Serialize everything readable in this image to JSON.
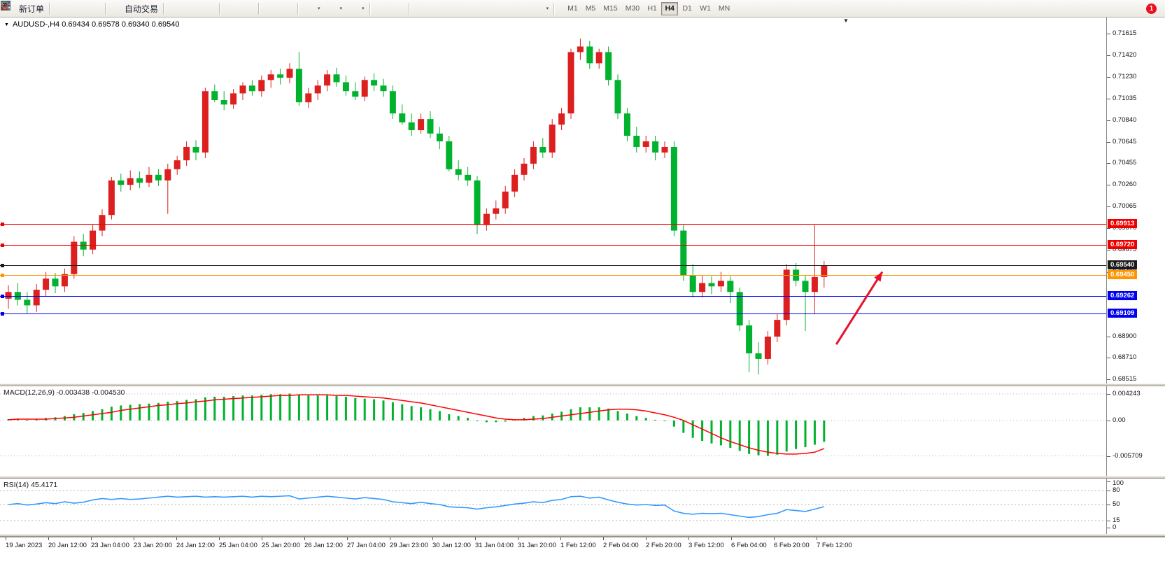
{
  "toolbar": {
    "buttons": [
      {
        "name": "new-order",
        "label": "新订单",
        "icon": "new-order"
      },
      {
        "separator": true
      },
      {
        "name": "market-watch",
        "icon": "market-watch"
      },
      {
        "name": "data-window",
        "icon": "data-window"
      },
      {
        "name": "navigator",
        "icon": "navigator"
      },
      {
        "separator": true
      },
      {
        "name": "auto-trading",
        "label": "自动交易",
        "icon": "auto-trading"
      },
      {
        "separator": true
      },
      {
        "name": "chart-bars",
        "icon": "chart-bars"
      },
      {
        "name": "chart-candles",
        "icon": "chart-candles"
      },
      {
        "name": "chart-line",
        "icon": "chart-line"
      },
      {
        "separator": true
      },
      {
        "name": "zoom-in",
        "icon": "zoom-in"
      },
      {
        "name": "zoom-out",
        "icon": "zoom-out"
      },
      {
        "separator": true
      },
      {
        "name": "tile-windows",
        "icon": "tile-windows"
      },
      {
        "name": "cascade-windows",
        "icon": "cascade-windows"
      },
      {
        "separator": true
      },
      {
        "name": "add-indicator",
        "icon": "add-indicator",
        "dropdown": true
      },
      {
        "name": "periods",
        "icon": "period-clock",
        "dropdown": true
      },
      {
        "name": "templates",
        "icon": "chart-template",
        "dropdown": true
      },
      {
        "separator": true
      },
      {
        "name": "cursor",
        "icon": "cursor-arrow"
      },
      {
        "name": "crosshair",
        "icon": "crosshair"
      },
      {
        "separator": true
      },
      {
        "name": "vertical-line",
        "icon": "vline-tool"
      },
      {
        "name": "horizontal-line",
        "icon": "hline-tool"
      },
      {
        "name": "trendline",
        "icon": "trendline-tool"
      },
      {
        "name": "equidistant-channel",
        "icon": "channel-tool"
      },
      {
        "name": "fibonacci",
        "icon": "fibo-tool"
      },
      {
        "name": "shapes",
        "icon": "shapes-tool"
      },
      {
        "name": "text-label",
        "icon": "text-tool"
      },
      {
        "name": "arrow-objects",
        "icon": "arrows-tool",
        "dropdown": true
      },
      {
        "separator": true
      }
    ],
    "timeframes": [
      {
        "label": "M1"
      },
      {
        "label": "M5"
      },
      {
        "label": "M15"
      },
      {
        "label": "M30"
      },
      {
        "label": "H1"
      },
      {
        "label": "H4",
        "active": true
      },
      {
        "label": "D1"
      },
      {
        "label": "W1"
      },
      {
        "label": "MN"
      }
    ],
    "notification_count": "1"
  },
  "chart": {
    "title_line": "AUDUSD-,H4 0.69434 0.69578 0.69340 0.69540"
  },
  "chart_data": {
    "type": "candlestick",
    "symbol": "AUDUSD-",
    "timeframe": "H4",
    "current_ohlc": {
      "open": 0.69434,
      "high": 0.69578,
      "low": 0.6934,
      "close": 0.6954
    },
    "colors": {
      "bull": "#dc1f1f",
      "bear": "#00b22d",
      "macd_bar": "#00b22d",
      "macd_signal": "#ff0000",
      "rsi_line": "#3399ff",
      "arrow": "#e8112d"
    },
    "price_axis": {
      "min": 0.6848,
      "max": 0.7176,
      "ticks": [
        "0.71615",
        "0.71420",
        "0.71230",
        "0.71035",
        "0.70840",
        "0.70645",
        "0.70455",
        "0.70260",
        "0.70065",
        "0.69870",
        "0.69675",
        "0.69480",
        "0.68900",
        "0.68710",
        "0.68515"
      ]
    },
    "hlines": [
      {
        "price": 0.69913,
        "label": "0.69913",
        "color": "#ee0000"
      },
      {
        "price": 0.6972,
        "label": "0.69720",
        "color": "#ee0000"
      },
      {
        "price": 0.6954,
        "label": "0.69540",
        "color": "#1a1a1a"
      },
      {
        "price": 0.6945,
        "label": "0.69450",
        "color": "#ff9500"
      },
      {
        "price": 0.69262,
        "label": "0.69262",
        "color": "#0000ee"
      },
      {
        "price": 0.69109,
        "label": "0.69109",
        "color": "#0000ee"
      }
    ],
    "arrow": {
      "from": {
        "index": 88.3,
        "price": 0.6883
      },
      "to": {
        "index": 93.2,
        "price": 0.6948
      },
      "width": 3
    },
    "time_labels": [
      "19 Jan 2023",
      "20 Jan 12:00",
      "23 Jan 04:00",
      "23 Jan 20:00",
      "24 Jan 12:00",
      "25 Jan 04:00",
      "25 Jan 20:00",
      "26 Jan 12:00",
      "27 Jan 04:00",
      "29 Jan 23:00",
      "30 Jan 12:00",
      "31 Jan 04:00",
      "31 Jan 20:00",
      "1 Feb 12:00",
      "2 Feb 04:00",
      "2 Feb 20:00",
      "3 Feb 12:00",
      "6 Feb 04:00",
      "6 Feb 20:00",
      "7 Feb 12:00"
    ],
    "candles_scale": 1e-05,
    "candles": [
      [
        69240,
        69360,
        69150,
        69300
      ],
      [
        69300,
        69380,
        69180,
        69230
      ],
      [
        69230,
        69300,
        69110,
        69180
      ],
      [
        69180,
        69370,
        69120,
        69320
      ],
      [
        69320,
        69480,
        69260,
        69420
      ],
      [
        69420,
        69470,
        69290,
        69350
      ],
      [
        69350,
        69510,
        69300,
        69460
      ],
      [
        69460,
        69800,
        69420,
        69750
      ],
      [
        69750,
        69820,
        69620,
        69680
      ],
      [
        69680,
        69900,
        69640,
        69850
      ],
      [
        69850,
        70040,
        69800,
        69990
      ],
      [
        69990,
        70330,
        69950,
        70300
      ],
      [
        70300,
        70360,
        70200,
        70260
      ],
      [
        70260,
        70390,
        70210,
        70320
      ],
      [
        70320,
        70380,
        70230,
        70280
      ],
      [
        70280,
        70420,
        70240,
        70350
      ],
      [
        70350,
        70400,
        70250,
        70300
      ],
      [
        70300,
        70450,
        70000,
        70400
      ],
      [
        70400,
        70520,
        70350,
        70480
      ],
      [
        70480,
        70650,
        70430,
        70600
      ],
      [
        70600,
        70660,
        70480,
        70550
      ],
      [
        70550,
        71130,
        70500,
        71100
      ],
      [
        71100,
        71160,
        71000,
        71020
      ],
      [
        71020,
        71100,
        70930,
        70980
      ],
      [
        70980,
        71120,
        70940,
        71080
      ],
      [
        71080,
        71180,
        71020,
        71150
      ],
      [
        71150,
        71200,
        71060,
        71100
      ],
      [
        71100,
        71240,
        71050,
        71200
      ],
      [
        71200,
        71290,
        71130,
        71250
      ],
      [
        71250,
        71300,
        71160,
        71220
      ],
      [
        71220,
        71350,
        71170,
        71300
      ],
      [
        71300,
        71450,
        70970,
        71000
      ],
      [
        71000,
        71130,
        70950,
        71080
      ],
      [
        71080,
        71200,
        71020,
        71150
      ],
      [
        71150,
        71290,
        71100,
        71250
      ],
      [
        71250,
        71310,
        71140,
        71180
      ],
      [
        71180,
        71240,
        71060,
        71100
      ],
      [
        71100,
        71180,
        71020,
        71050
      ],
      [
        71050,
        71230,
        71010,
        71200
      ],
      [
        71200,
        71260,
        71100,
        71150
      ],
      [
        71150,
        71210,
        71050,
        71100
      ],
      [
        71100,
        71150,
        70850,
        70900
      ],
      [
        70900,
        70980,
        70800,
        70820
      ],
      [
        70820,
        70900,
        70700,
        70750
      ],
      [
        70750,
        70900,
        70720,
        70850
      ],
      [
        70850,
        70920,
        70680,
        70720
      ],
      [
        70720,
        70780,
        70580,
        70650
      ],
      [
        70650,
        70700,
        70380,
        70400
      ],
      [
        70400,
        70480,
        70300,
        70350
      ],
      [
        70350,
        70420,
        70250,
        70300
      ],
      [
        70300,
        70340,
        69820,
        69900
      ],
      [
        69900,
        70050,
        69850,
        70000
      ],
      [
        70000,
        70120,
        69950,
        70050
      ],
      [
        70050,
        70250,
        70000,
        70200
      ],
      [
        70200,
        70400,
        70150,
        70350
      ],
      [
        70350,
        70500,
        70300,
        70450
      ],
      [
        70450,
        70650,
        70400,
        70600
      ],
      [
        70600,
        70680,
        70500,
        70550
      ],
      [
        70550,
        70850,
        70500,
        70800
      ],
      [
        70800,
        70950,
        70750,
        70900
      ],
      [
        70900,
        71480,
        70850,
        71450
      ],
      [
        71450,
        71570,
        71380,
        71500
      ],
      [
        71500,
        71550,
        71300,
        71350
      ],
      [
        71350,
        71480,
        71300,
        71450
      ],
      [
        71450,
        71500,
        71150,
        71200
      ],
      [
        71200,
        71250,
        70850,
        70900
      ],
      [
        70900,
        70950,
        70650,
        70700
      ],
      [
        70700,
        70780,
        70550,
        70600
      ],
      [
        70600,
        70700,
        70550,
        70650
      ],
      [
        70650,
        70700,
        70480,
        70550
      ],
      [
        70550,
        70650,
        70500,
        70600
      ],
      [
        70600,
        70650,
        69800,
        69850
      ],
      [
        69850,
        69900,
        69400,
        69450
      ],
      [
        69450,
        69550,
        69250,
        69300
      ],
      [
        69300,
        69450,
        69250,
        69380
      ],
      [
        69380,
        69440,
        69280,
        69350
      ],
      [
        69350,
        69480,
        69300,
        69400
      ],
      [
        69400,
        69440,
        69200,
        69300
      ],
      [
        69300,
        69340,
        68950,
        69000
      ],
      [
        69000,
        69050,
        68580,
        68750
      ],
      [
        68750,
        68850,
        68560,
        68700
      ],
      [
        68700,
        68950,
        68650,
        68900
      ],
      [
        68900,
        69100,
        68850,
        69050
      ],
      [
        69050,
        69550,
        69000,
        69500
      ],
      [
        69500,
        69560,
        69350,
        69400
      ],
      [
        69400,
        69450,
        68950,
        69300
      ],
      [
        69300,
        69900,
        69100,
        69434
      ],
      [
        69434,
        69578,
        69340,
        69540
      ]
    ],
    "macd": {
      "label": "MACD(12,26,9) -0.003438 -0.004530",
      "range": [
        -0.0089,
        0.00548
      ],
      "values_scale": 0.0001,
      "values": [
        2,
        3,
        1,
        2,
        4,
        5,
        7,
        10,
        12,
        15,
        18,
        22,
        24,
        25,
        26,
        27,
        28,
        30,
        31,
        33,
        34,
        37,
        38,
        38,
        39,
        40,
        40,
        41,
        42,
        42,
        43,
        41,
        40,
        40,
        40,
        39,
        38,
        36,
        35,
        34,
        32,
        29,
        26,
        23,
        21,
        18,
        15,
        10,
        7,
        4,
        -1,
        -3,
        -3,
        -2,
        1,
        4,
        7,
        8,
        11,
        14,
        18,
        21,
        21,
        21,
        19,
        15,
        11,
        7,
        4,
        1,
        -1,
        -10,
        -20,
        -28,
        -33,
        -37,
        -40,
        -44,
        -49,
        -54,
        -56,
        -57,
        -55,
        -50,
        -46,
        -43,
        -39,
        -34.38
      ],
      "signal": [
        1,
        2,
        2,
        2,
        2,
        3,
        4,
        5,
        7,
        9,
        11,
        13,
        16,
        18,
        20,
        22,
        24,
        25,
        27,
        28,
        30,
        31,
        33,
        34,
        35,
        36,
        37,
        38,
        39,
        40,
        40,
        41,
        41,
        41,
        41,
        40,
        40,
        39,
        38,
        37,
        36,
        34,
        32,
        30,
        28,
        25,
        22,
        19,
        16,
        13,
        10,
        7,
        4,
        2,
        1,
        1,
        2,
        3,
        5,
        7,
        9,
        11,
        13,
        15,
        17,
        18,
        18,
        17,
        15,
        12,
        9,
        5,
        0,
        -7,
        -14,
        -21,
        -28,
        -34,
        -39,
        -44,
        -48,
        -51,
        -53,
        -54,
        -54,
        -53,
        -51,
        -45.3
      ],
      "axis": [
        {
          "label": "0.004243",
          "value": 0.004243
        },
        {
          "label": "0.00",
          "value": 0
        },
        {
          "label": "-0.005709",
          "value": -0.005709
        }
      ]
    },
    "rsi": {
      "label": "RSI(14) 45.4171",
      "range": [
        0,
        100
      ],
      "levels": [
        80,
        50,
        15
      ],
      "values": [
        50,
        52,
        49,
        51,
        54,
        52,
        56,
        53,
        55,
        60,
        63,
        61,
        63,
        61,
        62,
        64,
        66,
        68,
        66,
        67,
        68,
        66,
        67,
        66,
        67,
        68,
        66,
        68,
        67,
        68,
        69,
        62,
        64,
        66,
        68,
        66,
        64,
        62,
        65,
        63,
        61,
        56,
        54,
        52,
        55,
        52,
        50,
        45,
        44,
        43,
        40,
        43,
        45,
        48,
        51,
        53,
        56,
        54,
        59,
        61,
        67,
        68,
        64,
        66,
        60,
        55,
        51,
        49,
        50,
        48,
        49,
        36,
        31,
        29,
        31,
        30,
        31,
        28,
        25,
        22,
        24,
        28,
        31,
        39,
        37,
        35,
        40,
        45.4
      ],
      "axis": [
        {
          "label": "100",
          "value": 100
        },
        {
          "label": "80",
          "value": 80
        },
        {
          "label": "50",
          "value": 50
        },
        {
          "label": "15",
          "value": 15
        },
        {
          "label": "0",
          "value": 0
        }
      ]
    }
  }
}
